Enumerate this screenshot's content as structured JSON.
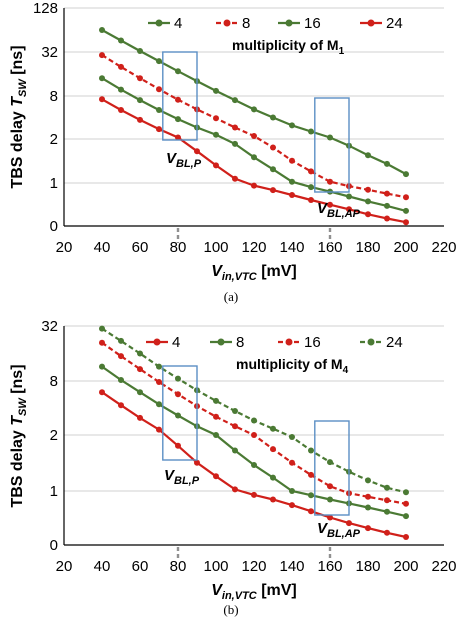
{
  "colors": {
    "red": "#d0201a",
    "green": "#4b7a34",
    "box": "#5b8fc4",
    "grid": "#d0d0d0",
    "dash": "#909090"
  },
  "chart_data": [
    {
      "type": "line",
      "caption": "(a)",
      "ylabel": "TBS delay",
      "ylabel_sym": "T",
      "ylabel_sub": "SW",
      "ylabel_unit": "[ns]",
      "xlabel_sym": "V",
      "xlabel_sub": "in,VTC",
      "xlabel_unit": "[mV]",
      "xticks": [
        "20",
        "40",
        "60",
        "80",
        "100",
        "120",
        "140",
        "160",
        "180",
        "200",
        "220"
      ],
      "yticks": [
        "0",
        "1",
        "2",
        "8",
        "32",
        "128"
      ],
      "xlim": [
        20,
        220
      ],
      "y_scale": "log-like (0, 1, 2, 8, 32, 128 ticks)",
      "legend_note": "multiplicity of M",
      "legend_note_sub": "1",
      "x": [
        40,
        50,
        60,
        70,
        80,
        90,
        100,
        110,
        120,
        130,
        140,
        150,
        160,
        170,
        180,
        190,
        200
      ],
      "series": [
        {
          "name": "4",
          "color": "green",
          "dashed": false,
          "values": [
            64,
            46,
            33,
            24,
            17.5,
            12.8,
            9.4,
            7,
            5.2,
            4,
            3.1,
            2.55,
            2.1,
            1.8,
            1.55,
            1.35,
            1.15
          ]
        },
        {
          "name": "8",
          "color": "red",
          "dashed": true,
          "values": [
            29,
            20,
            14,
            9.9,
            7.1,
            5.2,
            3.9,
            2.9,
            2.2,
            1.75,
            1.42,
            1.2,
            1.02,
            0.86,
            0.72,
            0.6,
            0.5
          ]
        },
        {
          "name": "16",
          "color": "green",
          "dashed": false,
          "values": [
            14,
            9.8,
            7,
            5.1,
            3.8,
            2.9,
            2.3,
            1.85,
            1.5,
            1.24,
            1.02,
            0.82,
            0.66,
            0.52,
            0.41,
            0.33,
            0.26
          ]
        },
        {
          "name": "24",
          "color": "red",
          "dashed": false,
          "values": [
            7.2,
            5.1,
            3.7,
            2.75,
            2.1,
            1.65,
            1.32,
            1.07,
            0.88,
            0.71,
            0.56,
            0.44,
            0.35,
            0.28,
            0.22,
            0.18,
            0.15
          ]
        }
      ],
      "annotations": [
        {
          "label_sym": "V",
          "label_sub": "BL,P",
          "x_marker": 80,
          "box_x": [
            72,
            90
          ]
        },
        {
          "label_sym": "V",
          "label_sub": "BL,AP",
          "x_marker": 160,
          "box_x": [
            152,
            170
          ]
        }
      ]
    },
    {
      "type": "line",
      "caption": "(b)",
      "ylabel": "TBS delay",
      "ylabel_sym": "T",
      "ylabel_sub": "SW",
      "ylabel_unit": "[ns]",
      "xlabel_sym": "V",
      "xlabel_sub": "in,VTC",
      "xlabel_unit": "[mV]",
      "xticks": [
        "20",
        "40",
        "60",
        "80",
        "100",
        "120",
        "140",
        "160",
        "180",
        "200",
        "220"
      ],
      "yticks": [
        "0",
        "1",
        "2",
        "8",
        "32"
      ],
      "xlim": [
        20,
        220
      ],
      "y_scale": "log-like (0, 1, 2, 8, 32 ticks)",
      "legend_note": "multiplicity of M",
      "legend_note_sub": "4",
      "x": [
        40,
        50,
        60,
        70,
        80,
        90,
        100,
        110,
        120,
        130,
        140,
        150,
        160,
        170,
        180,
        190,
        200
      ],
      "series": [
        {
          "name": "4",
          "color": "red",
          "dashed": false,
          "values": [
            6,
            4.3,
            3.1,
            2.3,
            1.75,
            1.42,
            1.2,
            1.02,
            0.86,
            0.72,
            0.58,
            0.46,
            0.36,
            0.29,
            0.24,
            0.2,
            0.17
          ]
        },
        {
          "name": "8",
          "color": "green",
          "dashed": false,
          "values": [
            11.5,
            8.2,
            6,
            4.4,
            3.3,
            2.5,
            2,
            1.65,
            1.38,
            1.18,
            1,
            0.85,
            0.72,
            0.62,
            0.53,
            0.45,
            0.38
          ]
        },
        {
          "name": "16",
          "color": "red",
          "dashed": true,
          "values": [
            21,
            15,
            10.8,
            7.8,
            5.7,
            4.2,
            3.2,
            2.5,
            2,
            1.68,
            1.42,
            1.22,
            1.06,
            0.92,
            0.8,
            0.7,
            0.61
          ]
        },
        {
          "name": "24",
          "color": "green",
          "dashed": true,
          "values": [
            30,
            22,
            16,
            11.5,
            8.5,
            6.3,
            4.8,
            3.7,
            2.9,
            2.35,
            1.95,
            1.65,
            1.43,
            1.27,
            1.14,
            1.04,
            0.95
          ]
        }
      ],
      "annotations": [
        {
          "label_sym": "V",
          "label_sub": "BL,P",
          "x_marker": 80,
          "box_x": [
            72,
            90
          ]
        },
        {
          "label_sym": "V",
          "label_sub": "BL,AP",
          "x_marker": 160,
          "box_x": [
            152,
            170
          ]
        }
      ]
    }
  ]
}
